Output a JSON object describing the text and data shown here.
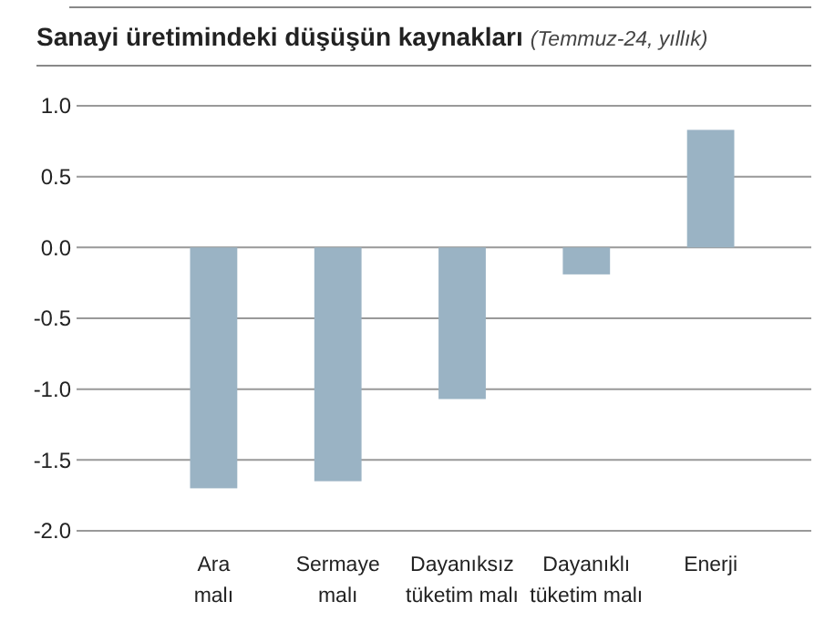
{
  "chart_data": {
    "type": "bar",
    "title": "Sanayi üretimindeki düşüşün kaynakları",
    "subtitle": "(Temmuz-24, yıllık)",
    "categories": [
      "Ara malı",
      "Sermaye malı",
      "Dayanıksız tüketim malı",
      "Dayanıklı tüketim malı",
      "Enerji"
    ],
    "values": [
      -1.7,
      -1.65,
      -1.07,
      -0.19,
      0.83
    ],
    "color": "#9ab3c4",
    "ylim": [
      -2.0,
      1.0
    ],
    "yticks": [
      {
        "value": -2,
        "label": "-2.0"
      },
      {
        "value": -1.5,
        "label": "-1.5"
      },
      {
        "value": -1,
        "label": "-1.0"
      },
      {
        "value": -0.5,
        "label": "-0.5"
      },
      {
        "value": 0,
        "label": "0.0"
      },
      {
        "value": 0.5,
        "label": "0.5"
      },
      {
        "value": 1,
        "label": "1.0"
      }
    ],
    "grid": "y"
  }
}
